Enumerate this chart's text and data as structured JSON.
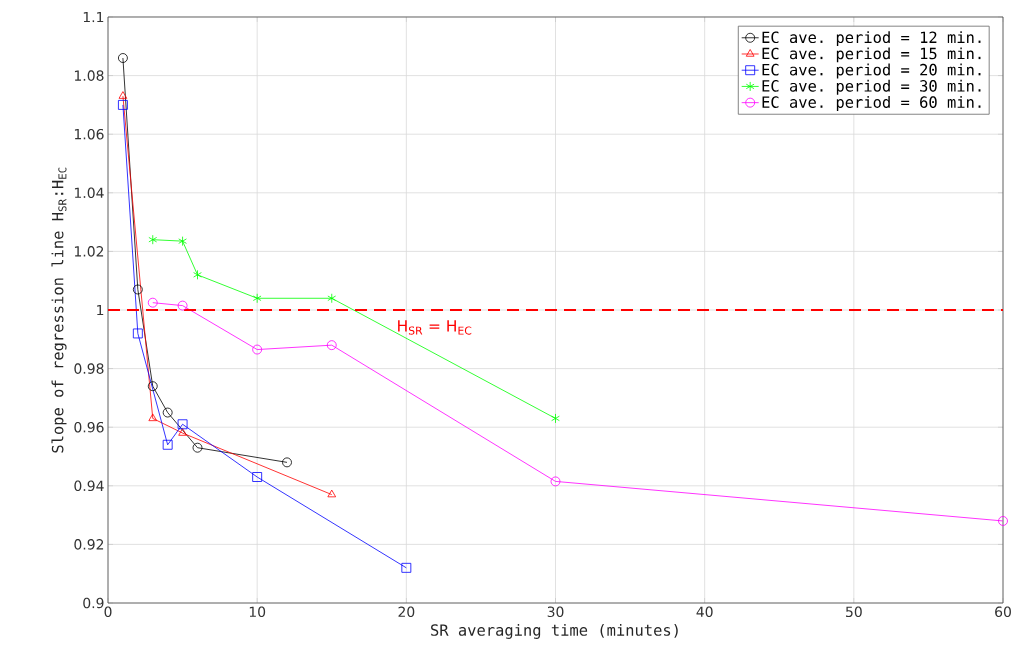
{
  "chart_data": {
    "type": "line",
    "xlabel": "SR averaging time (minutes)",
    "ylabel": "Slope of regression line   H$_{SR}$:H$_{EC}$",
    "xlim": [
      0,
      60
    ],
    "ylim": [
      0.9,
      1.1
    ],
    "xticks": [
      0,
      10,
      20,
      30,
      40,
      50,
      60
    ],
    "yticks": [
      0.9,
      0.92,
      0.94,
      0.96,
      0.98,
      1,
      1.02,
      1.04,
      1.06,
      1.08,
      1.1
    ],
    "grid": true,
    "legend": "top right",
    "line_style": "solid",
    "series": [
      {
        "name": "EC ave. period = 12 min.",
        "color": "#000000",
        "marker": "circle",
        "x": [
          1,
          2,
          3,
          4,
          6,
          12
        ],
        "values": [
          1.086,
          1.007,
          0.974,
          0.965,
          0.953,
          0.948
        ]
      },
      {
        "name": "EC ave. period = 15 min.",
        "color": "#ff0000",
        "marker": "triangle",
        "x": [
          1,
          3,
          5,
          15
        ],
        "values": [
          1.073,
          0.963,
          0.958,
          0.937
        ]
      },
      {
        "name": "EC ave. period = 20 min.",
        "color": "#0000ff",
        "marker": "square",
        "x": [
          1,
          2,
          4,
          5,
          10,
          20
        ],
        "values": [
          1.07,
          0.992,
          0.954,
          0.961,
          0.943,
          0.912
        ]
      },
      {
        "name": "EC ave. period = 30 min.",
        "color": "#00ff00",
        "marker": "cross",
        "x": [
          3,
          5,
          6,
          10,
          15,
          30
        ],
        "values": [
          1.024,
          1.0235,
          1.012,
          1.004,
          1.004,
          0.963
        ]
      },
      {
        "name": "EC ave. period = 60 min.",
        "color": "#ff00ff",
        "marker": "circle",
        "x": [
          3,
          5,
          10,
          15,
          30,
          60
        ],
        "values": [
          1.0025,
          1.0015,
          0.9865,
          0.988,
          0.9415,
          0.928
        ]
      }
    ],
    "ref_lines": [
      {
        "axis": "y",
        "value": 1,
        "label": "H$_{SR}$ = H$_{EC}$",
        "color": "#ff0000",
        "line_style": "dashed"
      }
    ]
  }
}
